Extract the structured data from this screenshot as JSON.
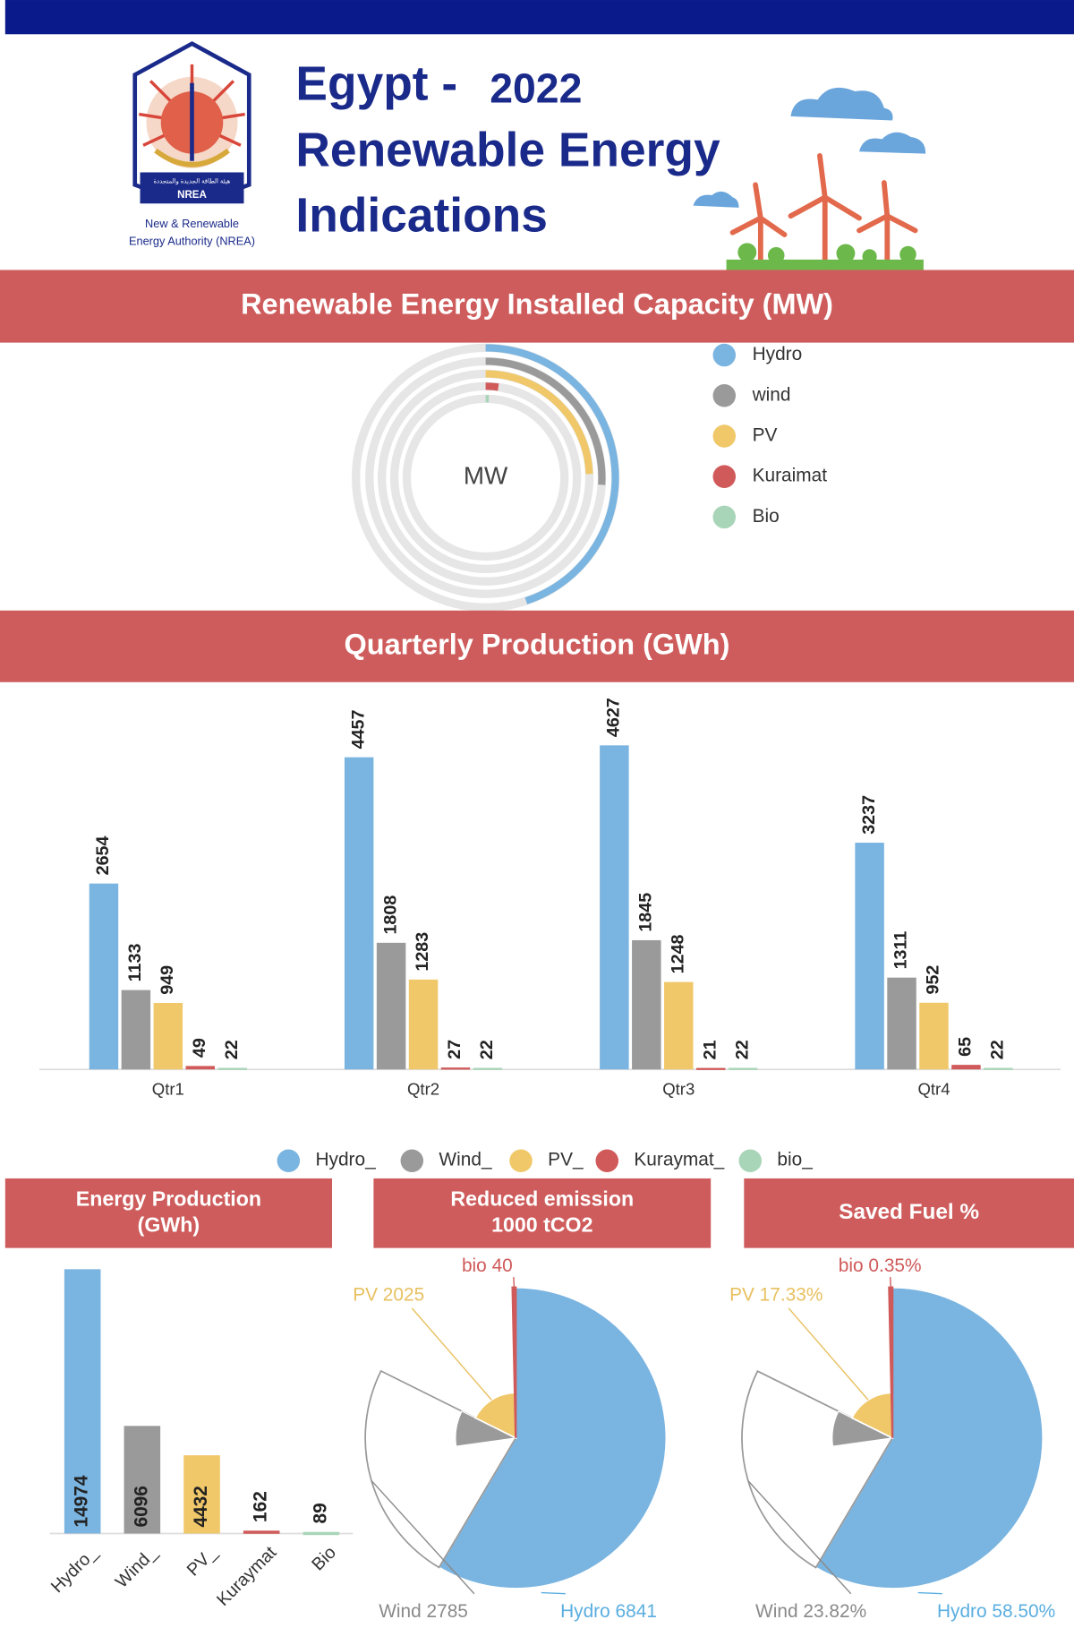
{
  "header": {
    "title_line1": "Egypt -",
    "year": "2022",
    "title_line2": "Renewable Energy",
    "title_line3": "Indications"
  },
  "logo": {
    "arabic": "هيئة الطاقة الجديدة والمتجددة",
    "name": "NREA",
    "caption1": "New & Renewable",
    "caption2": "Energy Authority (NREA)"
  },
  "chart_data": [
    {
      "type": "radial_bar",
      "title": "Renewable Energy Installed Capacity (MW)",
      "center_label": "MW",
      "categories": [
        "Hydro",
        "wind",
        "PV",
        "Kuraimat",
        "Bio"
      ],
      "values": [
        2832,
        1637,
        1540,
        140,
        40
      ],
      "colors": [
        "#7ab4e0",
        "#9a9a9a",
        "#f0c869",
        "#d05a5a",
        "#a8d5b8"
      ],
      "ylim": [
        0,
        6300
      ]
    },
    {
      "type": "grouped_bar",
      "title": "Quarterly Production (GWh)",
      "categories": [
        "Qtr1",
        "Qtr2",
        "Qtr3",
        "Qtr4"
      ],
      "series": [
        {
          "name": "Hydro_",
          "color": "#7ab4e0",
          "values": [
            2654,
            4457,
            4627,
            3237
          ]
        },
        {
          "name": "Wind_",
          "color": "#9a9a9a",
          "values": [
            1133,
            1808,
            1845,
            1311
          ]
        },
        {
          "name": "PV_",
          "color": "#f0c869",
          "values": [
            949,
            1283,
            1248,
            952
          ]
        },
        {
          "name": "Kuraymat_",
          "color": "#d05a5a",
          "values": [
            49,
            27,
            21,
            65
          ]
        },
        {
          "name": "bio_",
          "color": "#a8d5b8",
          "values": [
            22,
            22,
            22,
            22
          ]
        }
      ],
      "ylim": [
        0,
        5500
      ]
    },
    {
      "type": "bar",
      "title": [
        "Energy Production",
        "(GWh)"
      ],
      "categories": [
        "Hydro_",
        "Wind_",
        "PV_",
        "Kuraymat",
        "Bio"
      ],
      "values": [
        14974,
        6096,
        4432,
        162,
        89
      ],
      "colors": [
        "#7ab4e0",
        "#9a9a9a",
        "#f0c869",
        "#d05a5a",
        "#a8d5b8"
      ],
      "ylim": [
        0,
        15000
      ]
    },
    {
      "type": "pie",
      "title": [
        "Reduced emission",
        "1000 tCO2"
      ],
      "values": [
        6841,
        2785,
        2025,
        40
      ],
      "value_labels": [
        "Hydro 6841",
        "Wind 2785",
        "PV 2025",
        "bio 40"
      ],
      "colors": [
        "#7ab4e0",
        "#ffffff",
        "#f0c869",
        "#d05a5a"
      ]
    },
    {
      "type": "pie",
      "title": "Saved Fuel %",
      "values": [
        58.5,
        23.82,
        17.33,
        0.35
      ],
      "value_labels": [
        "Hydro 58.50%",
        "Wind 23.82%",
        "PV 17.33%",
        "bio 0.35%"
      ],
      "colors": [
        "#7ab4e0",
        "#ffffff",
        "#f0c869",
        "#d05a5a"
      ]
    }
  ]
}
